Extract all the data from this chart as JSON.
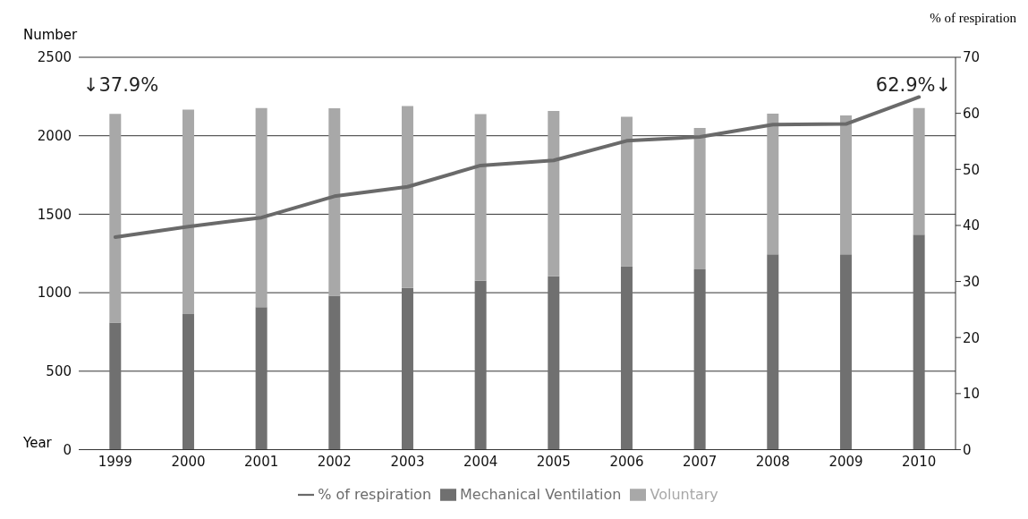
{
  "chart_data": {
    "type": "bar",
    "stacked": true,
    "xlabel": "Year",
    "ylabel": "Number",
    "y2label": "% of respiration",
    "categories": [
      "1999",
      "2000",
      "2001",
      "2002",
      "2003",
      "2004",
      "2005",
      "2006",
      "2007",
      "2008",
      "2009",
      "2010"
    ],
    "series": [
      {
        "name": "Mechanical Ventilation",
        "color": "#707070",
        "values": [
          810,
          864,
          908,
          981,
          1030,
          1076,
          1105,
          1169,
          1149,
          1245,
          1245,
          1370
        ]
      },
      {
        "name": "Voluntary",
        "color": "#a8a8a8",
        "values": [
          1330,
          1303,
          1269,
          1194,
          1159,
          1062,
          1053,
          952,
          900,
          896,
          885,
          806
        ]
      },
      {
        "name": "% of respiration",
        "type": "line",
        "axis": "y2",
        "color": "#6a6a6a",
        "values": [
          37.9,
          39.8,
          41.4,
          45.2,
          46.9,
          50.7,
          51.6,
          55.1,
          55.8,
          58.0,
          58.1,
          62.9
        ]
      }
    ],
    "ylim": [
      0,
      2500
    ],
    "yticks": [
      0,
      500,
      1000,
      1500,
      2000,
      2500
    ],
    "y2lim": [
      0,
      70
    ],
    "y2ticks": [
      0,
      10,
      20,
      30,
      40,
      50,
      60,
      70
    ],
    "annotations": [
      "↓37.9%",
      "62.9%↓"
    ],
    "grid": "y",
    "legend": "bottom",
    "marker": "none"
  }
}
